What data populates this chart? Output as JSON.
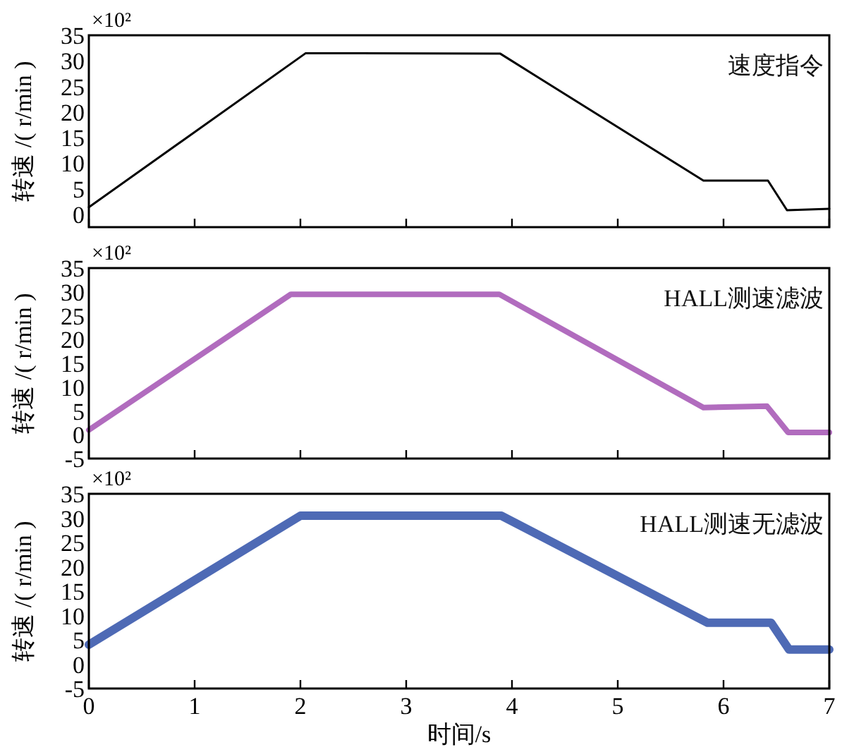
{
  "chart_data": [
    {
      "type": "line",
      "ylabel": "转速 /( r/min )",
      "annotations": [
        "×10²"
      ],
      "xlim": [
        0,
        7
      ],
      "xticks": [
        0,
        1,
        2,
        3,
        4,
        5,
        6,
        7
      ],
      "ylim": [
        -2.5,
        35
      ],
      "yticks": [
        0,
        5,
        10,
        15,
        20,
        25,
        30,
        35
      ],
      "tick_labels": "y",
      "x": [
        0,
        2.05,
        3.89,
        5.81,
        6.42,
        6.6,
        7
      ],
      "series": [
        {
          "name": "速度指令",
          "color": "#000000",
          "values": [
            1.4,
            31.5,
            31.4,
            6.6,
            6.6,
            0.8,
            1.1
          ]
        }
      ]
    },
    {
      "type": "line",
      "ylabel": "转速 /( r/min )",
      "annotations": [
        "×10²"
      ],
      "xlim": [
        0,
        7
      ],
      "xticks": [
        0,
        1,
        2,
        3,
        4,
        5,
        6,
        7
      ],
      "ylim": [
        -5,
        35
      ],
      "yticks": [
        -5,
        0,
        5,
        10,
        15,
        20,
        25,
        30,
        35
      ],
      "tick_labels": "y",
      "x": [
        0,
        1.91,
        3.88,
        5.81,
        6.41,
        6.61,
        7
      ],
      "series": [
        {
          "name": "HALL测速滤波",
          "color": "#a352b3",
          "values": [
            1,
            29.5,
            29.5,
            5.7,
            6,
            0.5,
            0.5
          ]
        }
      ]
    },
    {
      "type": "line",
      "ylabel": "转速 /( r/min )",
      "xlabel": "时间/s",
      "annotations": [
        "×10²"
      ],
      "xlim": [
        0,
        7
      ],
      "xticks": [
        0,
        1,
        2,
        3,
        4,
        5,
        6,
        7
      ],
      "ylim": [
        -5,
        35
      ],
      "yticks": [
        -5,
        0,
        5,
        10,
        15,
        20,
        25,
        30,
        35
      ],
      "x": [
        0,
        2.0,
        3.9,
        5.85,
        6.45,
        6.62,
        7
      ],
      "series": [
        {
          "name": "HALL测速无滤波",
          "color": "#2f50a8",
          "values": [
            4,
            30.5,
            30.5,
            8.5,
            8.5,
            3,
            3
          ]
        }
      ]
    }
  ]
}
